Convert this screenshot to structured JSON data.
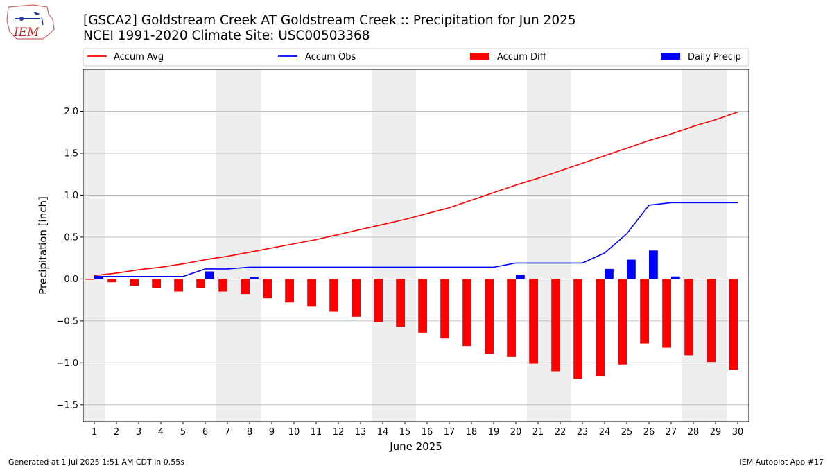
{
  "title_line1": "[GSCA2] Goldstream Creek  AT Goldstream Creek :: Precipitation for Jun 2025",
  "title_line2": "NCEI 1991-2020 Climate Site: USC00503368",
  "logo_text": "IEM",
  "footer_left": "Generated at 1 Jul 2025 1:51 AM CDT in 0.55s",
  "footer_right": "IEM Autoplot App #17",
  "colors": {
    "accum_avg": "#ff0000",
    "accum_obs": "#0000ff",
    "accum_diff": "#ff0000",
    "daily_precip": "#0000ff",
    "weekend_band": "#eeeeee",
    "grid": "#b0b0b0"
  },
  "chart_data": {
    "type": "bar",
    "xlabel": "June 2025",
    "ylabel": "Precipitation [inch]",
    "ylim": [
      -1.7,
      2.5
    ],
    "yticks": [
      -1.5,
      -1.0,
      -0.5,
      0.0,
      0.5,
      1.0,
      1.5,
      2.0
    ],
    "ytick_labels": [
      "−1.5",
      "−1.0",
      "−0.5",
      "0.0",
      "0.5",
      "1.0",
      "1.5",
      "2.0"
    ],
    "x": [
      1,
      2,
      3,
      4,
      5,
      6,
      7,
      8,
      9,
      10,
      11,
      12,
      13,
      14,
      15,
      16,
      17,
      18,
      19,
      20,
      21,
      22,
      23,
      24,
      25,
      26,
      27,
      28,
      29,
      30
    ],
    "weekend_days": [
      1,
      7,
      8,
      14,
      15,
      21,
      22,
      28,
      29
    ],
    "grid": "horizontal",
    "legend_position": "top",
    "series": [
      {
        "name": "Accum Avg",
        "kind": "line",
        "values": [
          0.04,
          0.07,
          0.11,
          0.14,
          0.18,
          0.23,
          0.27,
          0.32,
          0.37,
          0.42,
          0.47,
          0.53,
          0.59,
          0.65,
          0.71,
          0.78,
          0.85,
          0.94,
          1.03,
          1.12,
          1.2,
          1.29,
          1.38,
          1.47,
          1.56,
          1.65,
          1.73,
          1.82,
          1.9,
          1.99
        ]
      },
      {
        "name": "Accum Obs",
        "kind": "line",
        "values": [
          0.03,
          0.03,
          0.03,
          0.03,
          0.03,
          0.12,
          0.12,
          0.14,
          0.14,
          0.14,
          0.14,
          0.14,
          0.14,
          0.14,
          0.14,
          0.14,
          0.14,
          0.14,
          0.14,
          0.19,
          0.19,
          0.19,
          0.19,
          0.31,
          0.54,
          0.88,
          0.91,
          0.91,
          0.91,
          0.91
        ]
      },
      {
        "name": "Accum Diff",
        "kind": "bar",
        "values": [
          -0.01,
          -0.04,
          -0.08,
          -0.11,
          -0.15,
          -0.11,
          -0.15,
          -0.18,
          -0.23,
          -0.28,
          -0.33,
          -0.39,
          -0.45,
          -0.51,
          -0.57,
          -0.64,
          -0.71,
          -0.8,
          -0.89,
          -0.93,
          -1.01,
          -1.1,
          -1.19,
          -1.16,
          -1.02,
          -0.77,
          -0.82,
          -0.91,
          -0.99,
          -1.08
        ]
      },
      {
        "name": "Daily Precip",
        "kind": "bar",
        "values": [
          0.03,
          0,
          0,
          0,
          0,
          0.09,
          0,
          0.02,
          0,
          0,
          0,
          0,
          0,
          0,
          0,
          0,
          0,
          0,
          0,
          0.05,
          0,
          0,
          0,
          0.12,
          0.23,
          0.34,
          0.03,
          0,
          0,
          0
        ]
      }
    ]
  }
}
